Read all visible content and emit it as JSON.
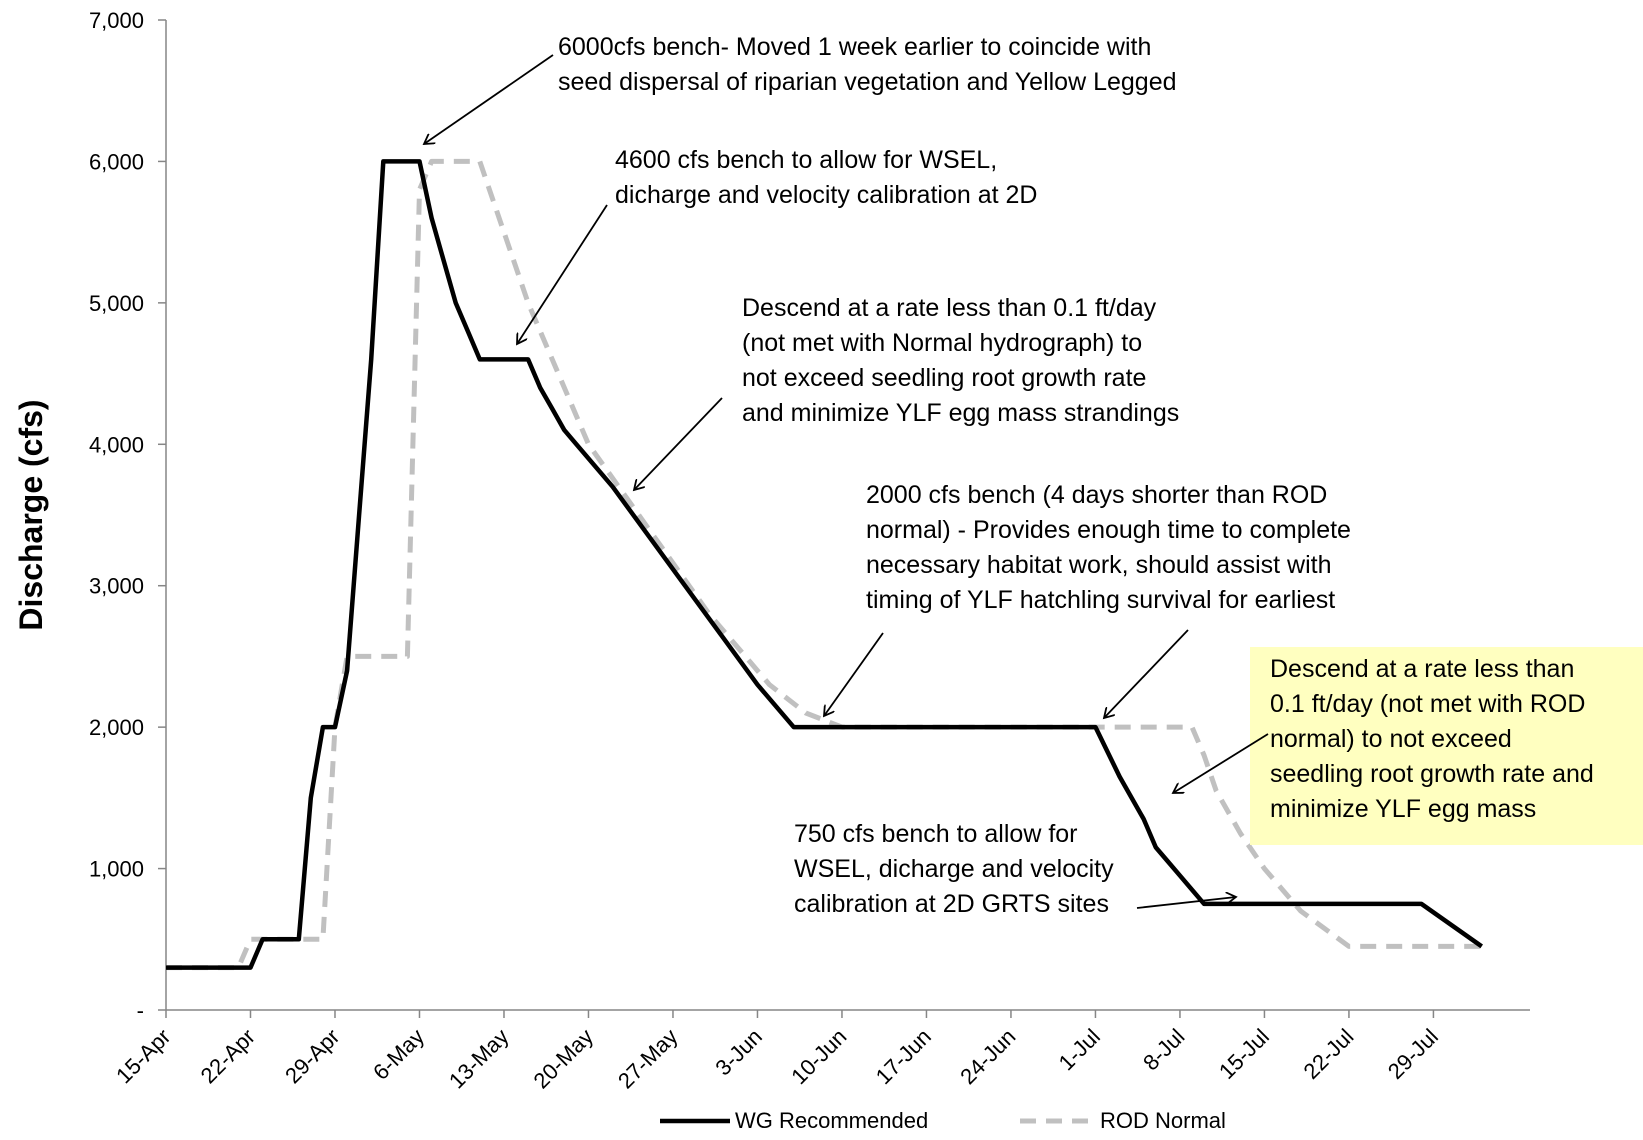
{
  "chart_data": {
    "type": "line",
    "ylabel": "Discharge (cfs)",
    "xlabel": "",
    "ylim": [
      0,
      7000
    ],
    "yticks": [
      0,
      1000,
      2000,
      3000,
      4000,
      5000,
      6000,
      7000
    ],
    "ytick_labels": [
      "-",
      "1,000",
      "2,000",
      "3,000",
      "4,000",
      "5,000",
      "6,000",
      "7,000"
    ],
    "xlim": [
      "15-Apr",
      "6-Aug"
    ],
    "xtick_labels": [
      "15-Apr",
      "22-Apr",
      "29-Apr",
      "6-May",
      "13-May",
      "20-May",
      "27-May",
      "3-Jun",
      "10-Jun",
      "17-Jun",
      "24-Jun",
      "1-Jul",
      "8-Jul",
      "15-Jul",
      "22-Jul",
      "29-Jul"
    ],
    "legend_position": "bottom",
    "grid": false,
    "series": [
      {
        "name": "WG Recommended",
        "color": "#000000",
        "style": "solid",
        "x": [
          "15-Apr",
          "22-Apr",
          "23-Apr",
          "26-Apr",
          "27-Apr",
          "28-Apr",
          "29-Apr",
          "30-Apr",
          "1-May",
          "2-May",
          "3-May",
          "6-May",
          "7-May",
          "8-May",
          "9-May",
          "10-May",
          "11-May",
          "12-May",
          "15-May",
          "16-May",
          "17-May",
          "18-May",
          "19-May",
          "22-May",
          "25-May",
          "28-May",
          "31-May",
          "3-Jun",
          "6-Jun",
          "10-Jun",
          "1-Jul",
          "3-Jul",
          "5-Jul",
          "6-Jul",
          "7-Jul",
          "8-Jul",
          "10-Jul",
          "13-Jul",
          "28-Jul",
          "2-Aug"
        ],
        "values": [
          300,
          300,
          500,
          500,
          1500,
          2000,
          2000,
          2400,
          3500,
          4600,
          6000,
          6000,
          5600,
          5300,
          5000,
          4800,
          4600,
          4600,
          4600,
          4400,
          4250,
          4100,
          4000,
          3700,
          3350,
          3000,
          2650,
          2300,
          2000,
          2000,
          2000,
          1650,
          1350,
          1150,
          1050,
          950,
          750,
          750,
          750,
          450
        ]
      },
      {
        "name": "ROD Normal",
        "color": "#c0c0c0",
        "style": "dashed",
        "x": [
          "15-Apr",
          "21-Apr",
          "22-Apr",
          "28-Apr",
          "29-Apr",
          "30-Apr",
          "5-May",
          "6-May",
          "7-May",
          "11-May",
          "15-May",
          "20-May",
          "25-May",
          "30-May",
          "4-Jun",
          "7-Jun",
          "10-Jun",
          "1-Jul",
          "9-Jul",
          "10-Jul",
          "11-Jul",
          "13-Jul",
          "15-Jul",
          "18-Jul",
          "22-Jul",
          "2-Aug"
        ],
        "values": [
          300,
          300,
          500,
          500,
          2000,
          2500,
          2500,
          5800,
          6000,
          6000,
          5000,
          4000,
          3400,
          2800,
          2300,
          2100,
          2000,
          2000,
          2000,
          1800,
          1550,
          1250,
          1000,
          700,
          450,
          450
        ]
      }
    ],
    "annotations": [
      {
        "lines": [
          "6000cfs bench- Moved 1 week earlier to coincide with",
          "seed dispersal of riparian vegetation and Yellow Legged"
        ]
      },
      {
        "lines": [
          "4600 cfs bench to allow  for WSEL,",
          "dicharge and velocity calibration at 2D"
        ]
      },
      {
        "lines": [
          "Descend at a rate less than 0.1 ft/day",
          "(not met with Normal hydrograph) to",
          "not exceed seedling root growth rate",
          "and minimize YLF egg mass strandings"
        ]
      },
      {
        "lines": [
          "2000 cfs bench (4 days shorter than ROD",
          "normal) - Provides enough time to  complete",
          "necessary habitat work, should assist with",
          "timing of YLF hatchling survival  for earliest"
        ]
      },
      {
        "lines": [
          "Descend at a rate less than",
          "0.1 ft/day (not met with ROD",
          "normal) to not exceed",
          "seedling root growth rate and",
          "minimize YLF egg mass"
        ],
        "highlight": "#ffffc0"
      },
      {
        "lines": [
          "750 cfs bench to allow  for",
          "WSEL, dicharge and velocity",
          "calibration at 2D GRTS sites"
        ]
      }
    ]
  }
}
